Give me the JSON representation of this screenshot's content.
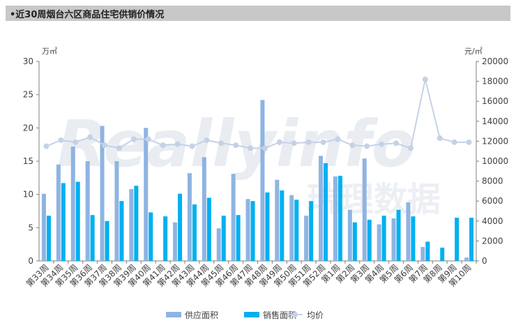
{
  "title": "•近30周烟台六区商品住宅供销价情况",
  "watermark": {
    "latin": "Reallyinfo",
    "cjk": "瑞理数据"
  },
  "chart_data": {
    "type": "bar",
    "categories": [
      "第33周",
      "第34周",
      "第35周",
      "第36周",
      "第37周",
      "第38周",
      "第39周",
      "第40周",
      "第41周",
      "第42周",
      "第43周",
      "第44周",
      "第45周",
      "第46周",
      "第47周",
      "第48周",
      "第49周",
      "第50周",
      "第51周",
      "第52周",
      "第1周",
      "第2周",
      "第3周",
      "第4周",
      "第5周",
      "第6周",
      "第7周",
      "第8周",
      "第9周",
      "第10周"
    ],
    "series": [
      {
        "name": "供应面积",
        "type": "bar",
        "axis": "left",
        "color": "#8eb4e3",
        "values": [
          10.1,
          14.5,
          17.2,
          15.0,
          20.3,
          15.0,
          10.8,
          20.0,
          0,
          5.8,
          13.2,
          15.6,
          4.9,
          13.1,
          9.3,
          24.2,
          12.2,
          9.9,
          6.8,
          15.8,
          12.7,
          7.7,
          15.4,
          5.5,
          6.4,
          8.8,
          2.1,
          0,
          0,
          0.5
        ]
      },
      {
        "name": "销售面积",
        "type": "bar",
        "axis": "right_unit_left",
        "color": "#00b0f0",
        "values": [
          6.8,
          11.7,
          11.9,
          6.9,
          6.0,
          9.0,
          11.3,
          7.3,
          6.7,
          10.1,
          8.5,
          9.5,
          6.8,
          6.9,
          9.0,
          10.3,
          10.6,
          9.2,
          9.0,
          14.7,
          12.8,
          5.8,
          6.2,
          6.8,
          7.7,
          6.7,
          2.9,
          2.0,
          6.5,
          6.5
        ]
      },
      {
        "name": "均价",
        "type": "line",
        "axis": "right",
        "color": "#c5d2e6",
        "values": [
          11500,
          12100,
          11900,
          12400,
          11600,
          11300,
          12200,
          12200,
          11600,
          11700,
          11500,
          12100,
          11800,
          11600,
          11300,
          11300,
          11900,
          11800,
          11900,
          11900,
          12200,
          11600,
          11500,
          11700,
          11800,
          11300,
          18200,
          12300,
          11900,
          11900
        ]
      }
    ],
    "y_left": {
      "unit": "万㎡",
      "min": 0,
      "max": 30,
      "ticks": [
        0,
        5,
        10,
        15,
        20,
        25,
        30
      ]
    },
    "y_right": {
      "unit": "元/㎡",
      "min": 0,
      "max": 20000,
      "ticks": [
        0,
        2000,
        4000,
        6000,
        8000,
        10000,
        12000,
        14000,
        16000,
        18000,
        20000
      ]
    },
    "legend_position": "bottom"
  }
}
